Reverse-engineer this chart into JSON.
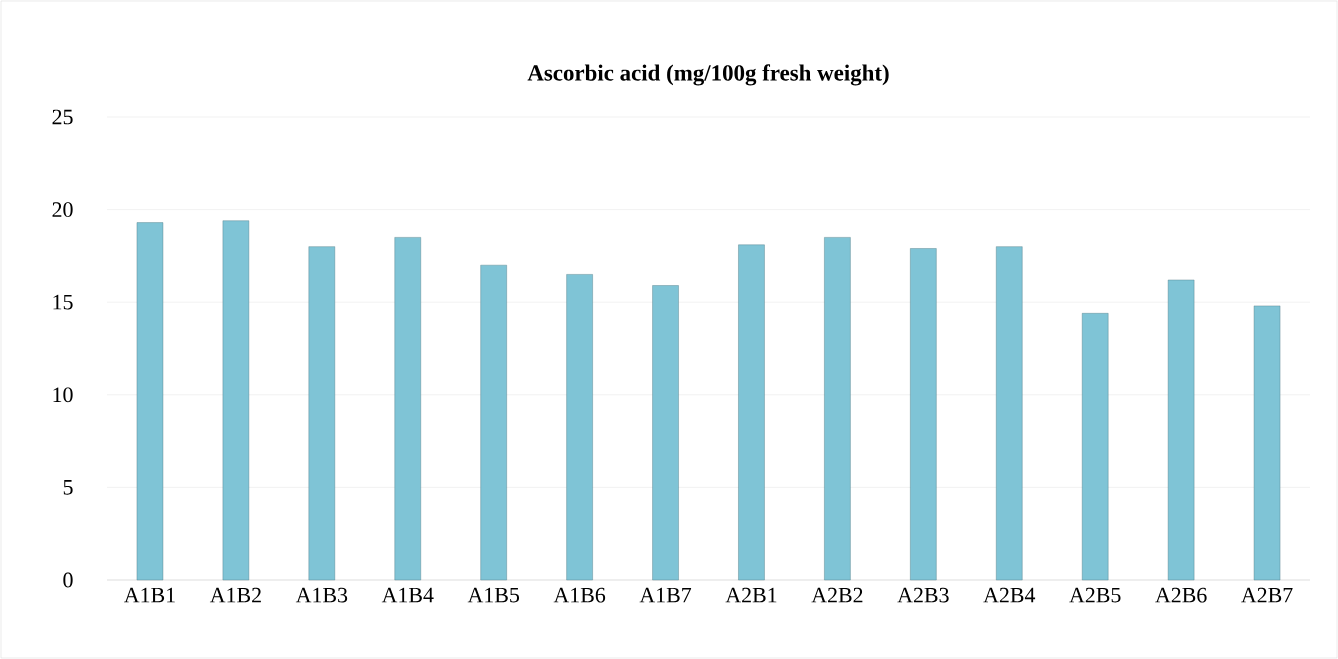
{
  "chart_data": {
    "type": "bar",
    "title": "Ascorbic acid (mg/100g fresh weight)",
    "categories": [
      "A1B1",
      "A1B2",
      "A1B3",
      "A1B4",
      "A1B5",
      "A1B6",
      "A1B7",
      "A2B1",
      "A2B2",
      "A2B3",
      "A2B4",
      "A2B5",
      "A2B6",
      "A2B7"
    ],
    "values": [
      19.3,
      19.4,
      18.0,
      18.5,
      17.0,
      16.5,
      15.9,
      18.1,
      18.5,
      17.9,
      18.0,
      14.4,
      16.2,
      14.8
    ],
    "color": "#7fc4d6",
    "ylim": [
      0,
      25
    ],
    "yticks": [
      0,
      5,
      10,
      15,
      20,
      25
    ],
    "grid": "y"
  }
}
